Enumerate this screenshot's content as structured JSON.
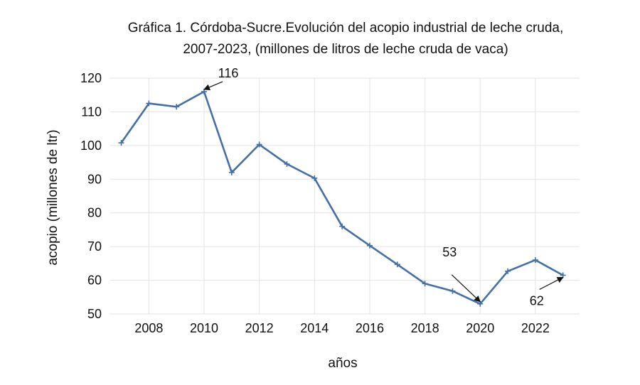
{
  "chart_data": {
    "type": "line",
    "title_lines": [
      "Gráfica 1. Córdoba-Sucre.Evolución del acopio industrial de leche cruda,",
      "2007-2023, (millones de litros de leche cruda de vaca)"
    ],
    "xlabel": "años",
    "ylabel": "acopio (millones de ltr)",
    "ylim": [
      50,
      120
    ],
    "yticks": [
      50,
      60,
      70,
      80,
      90,
      100,
      110,
      120
    ],
    "xlim": [
      2006.6,
      2023.6
    ],
    "xticks": [
      2008,
      2010,
      2012,
      2014,
      2016,
      2018,
      2020,
      2022
    ],
    "grid": true,
    "line_color": "#4470a8",
    "x": [
      2007,
      2008,
      2009,
      2010,
      2011,
      2012,
      2013,
      2014,
      2015,
      2016,
      2017,
      2018,
      2019,
      2020,
      2021,
      2022,
      2023
    ],
    "series": [
      {
        "values": [
          100.8,
          112.5,
          111.5,
          116,
          92,
          100.3,
          94.5,
          90.3,
          76,
          70.3,
          64.7,
          59,
          56.8,
          53,
          62.7,
          66,
          61.5
        ]
      }
    ],
    "annotations": [
      {
        "text": "116",
        "x": 2010,
        "y": 116
      },
      {
        "text": "53",
        "x": 2020,
        "y": 53
      },
      {
        "text": "62",
        "x": 2023,
        "y": 61.5
      }
    ]
  }
}
